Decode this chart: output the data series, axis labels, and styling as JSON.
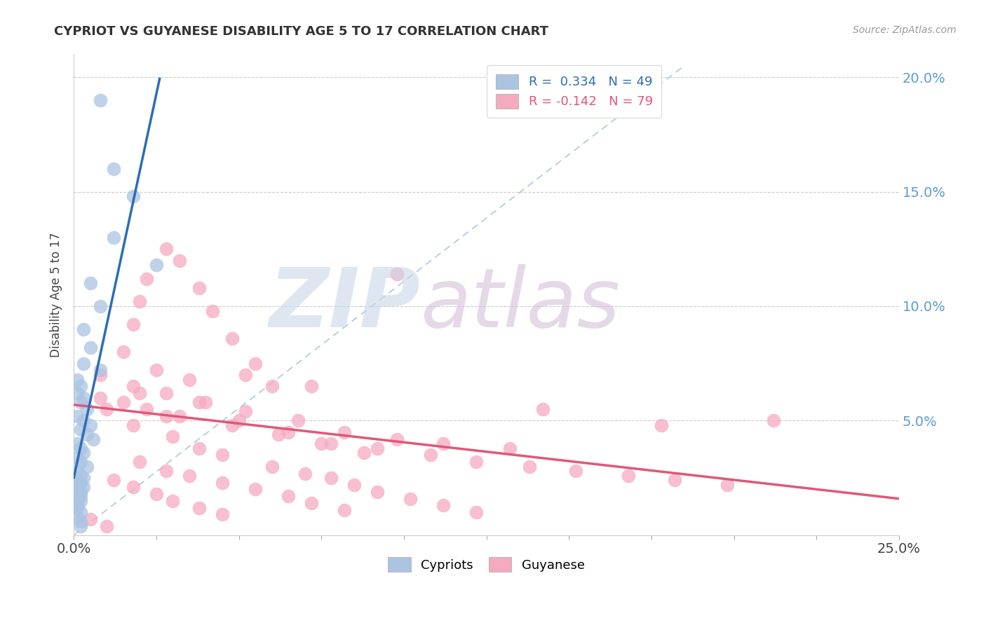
{
  "title": "CYPRIOT VS GUYANESE DISABILITY AGE 5 TO 17 CORRELATION CHART",
  "source": "Source: ZipAtlas.com",
  "ylabel": "Disability Age 5 to 17",
  "xlim": [
    0.0,
    0.25
  ],
  "ylim": [
    0.0,
    0.21
  ],
  "cypriot_color": "#aac4e2",
  "guyanese_color": "#f5aabf",
  "cypriot_line_color": "#2d6db5",
  "guyanese_line_color": "#e05878",
  "ref_line_color": "#b0c8d8",
  "background_color": "#ffffff",
  "watermark_zip_color": "#c8d8e8",
  "watermark_atlas_color": "#d4c0d8",
  "right_axis_color": "#5b9bd5",
  "cypriot_points": [
    [
      0.008,
      0.19
    ],
    [
      0.012,
      0.16
    ],
    [
      0.018,
      0.148
    ],
    [
      0.012,
      0.13
    ],
    [
      0.025,
      0.118
    ],
    [
      0.005,
      0.11
    ],
    [
      0.008,
      0.1
    ],
    [
      0.003,
      0.09
    ],
    [
      0.005,
      0.082
    ],
    [
      0.003,
      0.075
    ],
    [
      0.008,
      0.072
    ],
    [
      0.001,
      0.068
    ],
    [
      0.002,
      0.065
    ],
    [
      0.001,
      0.062
    ],
    [
      0.003,
      0.06
    ],
    [
      0.002,
      0.058
    ],
    [
      0.004,
      0.055
    ],
    [
      0.001,
      0.052
    ],
    [
      0.003,
      0.05
    ],
    [
      0.005,
      0.048
    ],
    [
      0.002,
      0.046
    ],
    [
      0.004,
      0.044
    ],
    [
      0.006,
      0.042
    ],
    [
      0.001,
      0.04
    ],
    [
      0.002,
      0.038
    ],
    [
      0.003,
      0.036
    ],
    [
      0.001,
      0.034
    ],
    [
      0.002,
      0.032
    ],
    [
      0.004,
      0.03
    ],
    [
      0.001,
      0.028
    ],
    [
      0.002,
      0.026
    ],
    [
      0.003,
      0.025
    ],
    [
      0.001,
      0.024
    ],
    [
      0.002,
      0.023
    ],
    [
      0.001,
      0.022
    ],
    [
      0.003,
      0.021
    ],
    [
      0.001,
      0.02
    ],
    [
      0.002,
      0.019
    ],
    [
      0.001,
      0.018
    ],
    [
      0.002,
      0.017
    ],
    [
      0.001,
      0.016
    ],
    [
      0.002,
      0.015
    ],
    [
      0.001,
      0.014
    ],
    [
      0.001,
      0.013
    ],
    [
      0.001,
      0.012
    ],
    [
      0.001,
      0.008
    ],
    [
      0.002,
      0.006
    ],
    [
      0.002,
      0.01
    ],
    [
      0.002,
      0.004
    ]
  ],
  "guyanese_points": [
    [
      0.028,
      0.125
    ],
    [
      0.032,
      0.12
    ],
    [
      0.022,
      0.112
    ],
    [
      0.038,
      0.108
    ],
    [
      0.02,
      0.102
    ],
    [
      0.042,
      0.098
    ],
    [
      0.018,
      0.092
    ],
    [
      0.048,
      0.086
    ],
    [
      0.015,
      0.08
    ],
    [
      0.055,
      0.075
    ],
    [
      0.025,
      0.072
    ],
    [
      0.035,
      0.068
    ],
    [
      0.06,
      0.065
    ],
    [
      0.02,
      0.062
    ],
    [
      0.04,
      0.058
    ],
    [
      0.01,
      0.055
    ],
    [
      0.028,
      0.052
    ],
    [
      0.05,
      0.05
    ],
    [
      0.018,
      0.048
    ],
    [
      0.065,
      0.045
    ],
    [
      0.03,
      0.043
    ],
    [
      0.075,
      0.04
    ],
    [
      0.038,
      0.038
    ],
    [
      0.088,
      0.036
    ],
    [
      0.045,
      0.035
    ],
    [
      0.098,
      0.114
    ],
    [
      0.02,
      0.032
    ],
    [
      0.06,
      0.03
    ],
    [
      0.028,
      0.028
    ],
    [
      0.07,
      0.027
    ],
    [
      0.035,
      0.026
    ],
    [
      0.078,
      0.025
    ],
    [
      0.012,
      0.024
    ],
    [
      0.045,
      0.023
    ],
    [
      0.085,
      0.022
    ],
    [
      0.018,
      0.021
    ],
    [
      0.055,
      0.02
    ],
    [
      0.092,
      0.019
    ],
    [
      0.025,
      0.018
    ],
    [
      0.065,
      0.017
    ],
    [
      0.102,
      0.016
    ],
    [
      0.03,
      0.015
    ],
    [
      0.072,
      0.014
    ],
    [
      0.112,
      0.013
    ],
    [
      0.038,
      0.012
    ],
    [
      0.082,
      0.011
    ],
    [
      0.122,
      0.01
    ],
    [
      0.045,
      0.009
    ],
    [
      0.142,
      0.055
    ],
    [
      0.178,
      0.048
    ],
    [
      0.008,
      0.06
    ],
    [
      0.015,
      0.058
    ],
    [
      0.022,
      0.055
    ],
    [
      0.032,
      0.052
    ],
    [
      0.048,
      0.048
    ],
    [
      0.062,
      0.044
    ],
    [
      0.078,
      0.04
    ],
    [
      0.092,
      0.038
    ],
    [
      0.108,
      0.035
    ],
    [
      0.122,
      0.032
    ],
    [
      0.138,
      0.03
    ],
    [
      0.152,
      0.028
    ],
    [
      0.168,
      0.026
    ],
    [
      0.182,
      0.024
    ],
    [
      0.198,
      0.022
    ],
    [
      0.212,
      0.05
    ],
    [
      0.008,
      0.07
    ],
    [
      0.018,
      0.065
    ],
    [
      0.028,
      0.062
    ],
    [
      0.038,
      0.058
    ],
    [
      0.052,
      0.054
    ],
    [
      0.068,
      0.05
    ],
    [
      0.082,
      0.045
    ],
    [
      0.098,
      0.042
    ],
    [
      0.112,
      0.04
    ],
    [
      0.132,
      0.038
    ],
    [
      0.052,
      0.07
    ],
    [
      0.072,
      0.065
    ],
    [
      0.005,
      0.007
    ],
    [
      0.01,
      0.004
    ]
  ]
}
